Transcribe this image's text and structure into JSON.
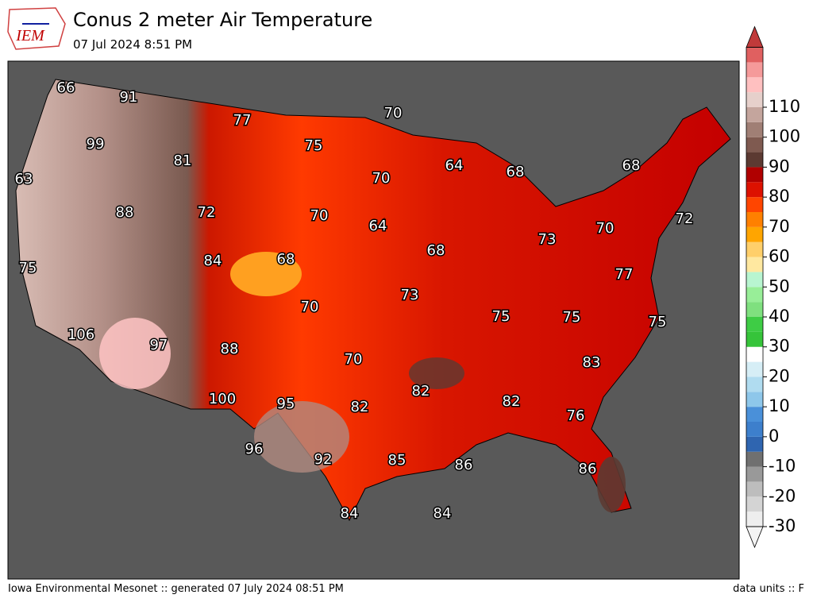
{
  "header": {
    "logo": "IEM",
    "title": "Conus 2 meter Air Temperature",
    "subtitle": "07 Jul 2024 8:51 PM"
  },
  "map": {
    "labels": [
      66,
      91,
      70,
      77,
      99,
      75,
      81,
      64,
      68,
      68,
      70,
      63,
      88,
      72,
      70,
      64,
      72,
      70,
      73,
      68,
      84,
      68,
      75,
      77,
      73,
      70,
      75,
      75,
      75,
      106,
      97,
      88,
      70,
      83,
      82,
      100,
      95,
      82,
      82,
      76,
      96,
      92,
      85,
      86,
      86,
      84,
      84
    ]
  },
  "colorbar": {
    "ticks": [
      -30,
      -20,
      -10,
      0,
      10,
      20,
      30,
      40,
      50,
      60,
      70,
      80,
      90,
      100,
      110
    ],
    "colors": [
      "#eeeeee",
      "#d4d4d4",
      "#bdbdbd",
      "#999999",
      "#707070",
      "#2f65b0",
      "#3d7fcc",
      "#4a90d9",
      "#8ec7ea",
      "#b0dcf0",
      "#d6eef6",
      "#ffffff",
      "#36c43a",
      "#3ecc45",
      "#7fe07f",
      "#98ee98",
      "#b8f5d0",
      "#ffe8a0",
      "#ffcf6a",
      "#ffa500",
      "#ff8000",
      "#ff4500",
      "#dd1100",
      "#b00000",
      "#5c3a32",
      "#7f5a50",
      "#a07f75",
      "#c4a59d",
      "#e6d0cb",
      "#ffc0c0",
      "#f59a9a",
      "#e06060"
    ],
    "under_color": "#f4f4f4",
    "over_color": "#c03a3a"
  },
  "footer": {
    "left": "Iowa Environmental Mesonet :: generated 07 July 2024 08:51 PM",
    "right": "data units :: F"
  }
}
